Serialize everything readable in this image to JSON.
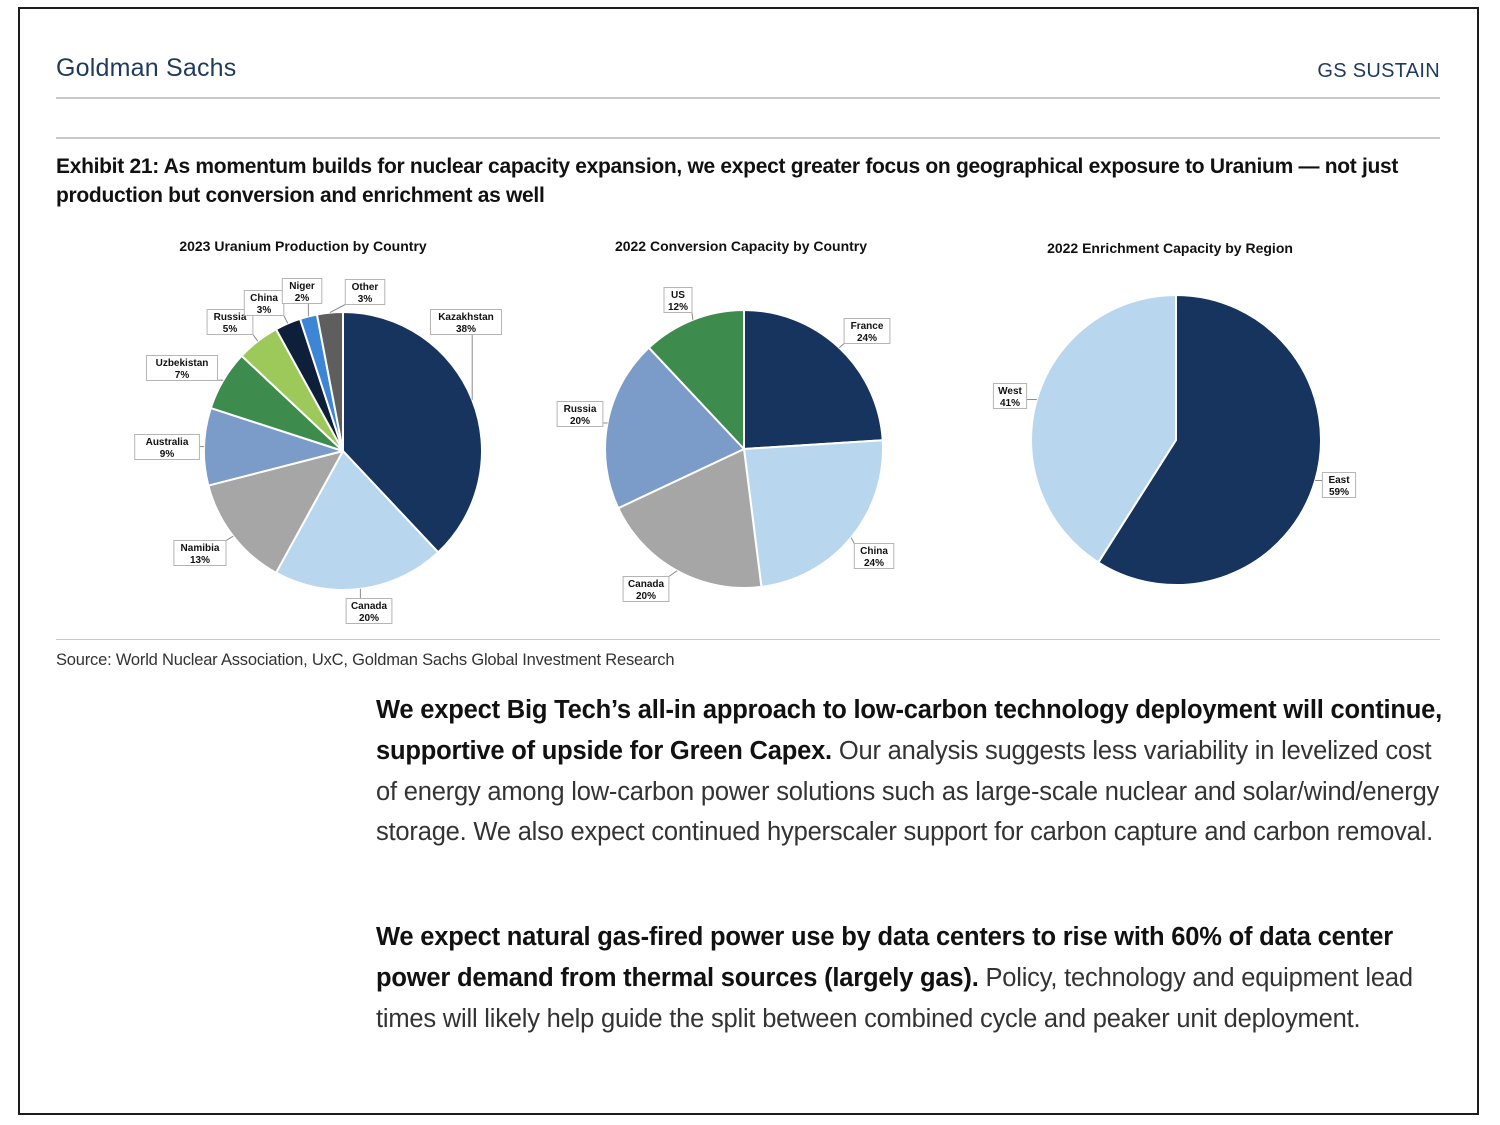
{
  "header": {
    "brand": "Goldman Sachs",
    "product": "GS SUSTAIN"
  },
  "exhibit": {
    "title": "Exhibit 21: As momentum builds for nuclear capacity expansion, we expect greater focus on geographical exposure to Uranium — not just production but conversion and enrichment as well",
    "source": "Source: World Nuclear Association, UxC, Goldman Sachs Global Investment Research"
  },
  "chart_data": [
    {
      "type": "pie",
      "title": "2023 Uranium Production by Country",
      "slices": [
        {
          "name": "Kazakhstan",
          "value": 38,
          "label": "38%",
          "color": "#16345e"
        },
        {
          "name": "Canada",
          "value": 20,
          "label": "20%",
          "color": "#b9d6ef"
        },
        {
          "name": "Namibia",
          "value": 13,
          "label": "13%",
          "color": "#a6a6a6"
        },
        {
          "name": "Australia",
          "value": 9,
          "label": "9%",
          "color": "#7b9cc9"
        },
        {
          "name": "Uzbekistan",
          "value": 7,
          "label": "7%",
          "color": "#3e8b4e"
        },
        {
          "name": "Russia",
          "value": 5,
          "label": "5%",
          "color": "#9cc95a"
        },
        {
          "name": "China",
          "value": 3,
          "label": "3%",
          "color": "#0e1f3a"
        },
        {
          "name": "Niger",
          "value": 2,
          "label": "2%",
          "color": "#3d86d6"
        },
        {
          "name": "Other",
          "value": 3,
          "label": "3%",
          "color": "#5e5e5e"
        }
      ]
    },
    {
      "type": "pie",
      "title": "2022 Conversion Capacity by Country",
      "slices": [
        {
          "name": "France",
          "value": 24,
          "label": "24%",
          "color": "#16345e"
        },
        {
          "name": "China",
          "value": 24,
          "label": "24%",
          "color": "#b9d6ef"
        },
        {
          "name": "Canada",
          "value": 20,
          "label": "20%",
          "color": "#a6a6a6"
        },
        {
          "name": "Russia",
          "value": 20,
          "label": "20%",
          "color": "#7b9cc9"
        },
        {
          "name": "US",
          "value": 12,
          "label": "12%",
          "color": "#3e8b4e"
        }
      ]
    },
    {
      "type": "pie",
      "title": "2022 Enrichment Capacity by Region",
      "slices": [
        {
          "name": "East",
          "value": 59,
          "label": "59%",
          "color": "#16345e"
        },
        {
          "name": "West",
          "value": 41,
          "label": "41%",
          "color": "#b9d6ef"
        }
      ]
    }
  ],
  "body": {
    "p1_bold": "We expect Big Tech’s all-in approach to low-carbon technology deployment will continue, supportive of upside for Green Capex.",
    "p1_text": " Our analysis suggests less variability in levelized cost of energy among low-carbon power solutions such as large-scale nuclear and solar/wind/energy storage. We also expect continued hyperscaler support for carbon capture and carbon removal.",
    "p2_bold": "We expect natural gas-fired power use by data centers to rise with 60% of data center power demand from thermal sources (largely gas).",
    "p2_text": " Policy, technology and equipment lead times will likely help guide the split between combined cycle and peaker unit deployment."
  }
}
